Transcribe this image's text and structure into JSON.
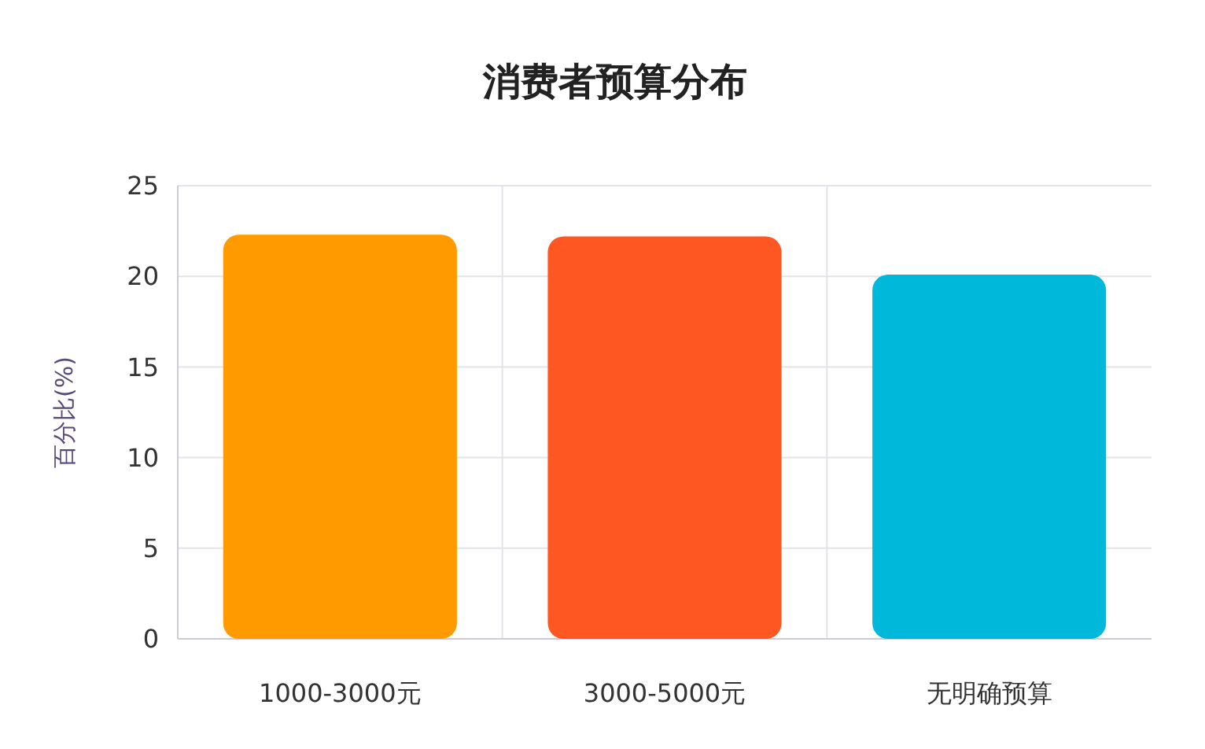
{
  "chart_data": {
    "type": "bar",
    "title": "消费者预算分布",
    "ylabel": "百分比(%)",
    "categories": [
      "1000-3000元",
      "3000-5000元",
      "无明确预算"
    ],
    "values": [
      22.3,
      22.2,
      20.1
    ],
    "colors": [
      "#ff9b00",
      "#ff5722",
      "#00b8d9"
    ],
    "ylim": [
      0,
      25
    ],
    "yticks": [
      0,
      5,
      10,
      15,
      20,
      25
    ],
    "grid": true
  }
}
